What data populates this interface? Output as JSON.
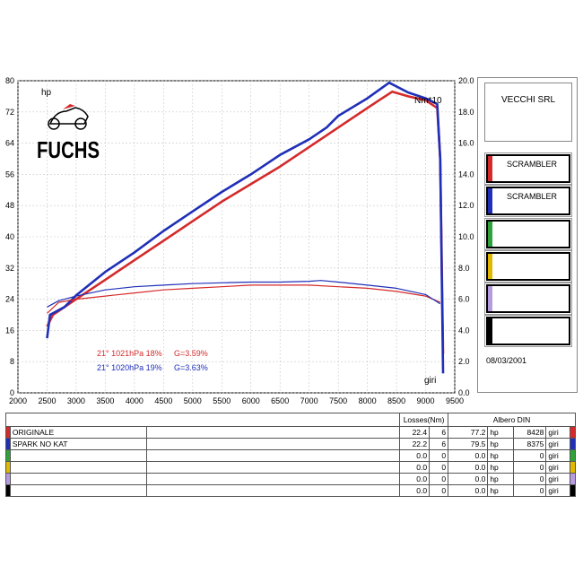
{
  "header": {
    "company": "VECCHI SRL",
    "date": "08/03/2001"
  },
  "logo": {
    "text": "FUCHS"
  },
  "colors": {
    "red": "#d42a2a",
    "blue": "#1f2fb8",
    "green": "#2fa23a",
    "yellow": "#e0b800",
    "violet": "#b79be0",
    "black": "#000000"
  },
  "legend": [
    {
      "label": "SCRAMBLER",
      "color": "#d42a2a"
    },
    {
      "label": "SCRAMBLER",
      "color": "#1f2fb8"
    },
    {
      "label": "",
      "color": "#2fa23a"
    },
    {
      "label": "",
      "color": "#e0b800"
    },
    {
      "label": "",
      "color": "#b79be0"
    },
    {
      "label": "",
      "color": "#000000"
    }
  ],
  "conditions": [
    {
      "text": "21° 1021hPa 18%",
      "g": "G=3.59%",
      "color": "#d42a2a"
    },
    {
      "text": "21° 1020hPa 19%",
      "g": "G=3.63%",
      "color": "#1f2fb8"
    }
  ],
  "table": {
    "losses_header": "Losses(Nm)",
    "albero_header": "Albero DIN",
    "rows": [
      {
        "name": "ORIGINALE",
        "color": "#d42a2a",
        "loss": "22.4",
        "gear": "6",
        "power": "77.2",
        "unit": "hp",
        "rpm": "8428",
        "rpm_unit": "giri"
      },
      {
        "name": "SPARK NO KAT",
        "color": "#1f2fb8",
        "loss": "22.2",
        "gear": "6",
        "power": "79.5",
        "unit": "hp",
        "rpm": "8375",
        "rpm_unit": "giri"
      },
      {
        "name": "",
        "color": "#2fa23a",
        "loss": "0.0",
        "gear": "0",
        "power": "0.0",
        "unit": "hp",
        "rpm": "0",
        "rpm_unit": "giri"
      },
      {
        "name": "",
        "color": "#e0b800",
        "loss": "0.0",
        "gear": "0",
        "power": "0.0",
        "unit": "hp",
        "rpm": "0",
        "rpm_unit": "giri"
      },
      {
        "name": "",
        "color": "#b79be0",
        "loss": "0.0",
        "gear": "0",
        "power": "0.0",
        "unit": "hp",
        "rpm": "0",
        "rpm_unit": "giri"
      },
      {
        "name": "",
        "color": "#000000",
        "loss": "0.0",
        "gear": "0",
        "power": "0.0",
        "unit": "hp",
        "rpm": "0",
        "rpm_unit": "giri"
      }
    ]
  },
  "chart_data": {
    "type": "line",
    "ylabel_left": "hp",
    "ylabel_right": "Nm*10",
    "xlabel": "giri",
    "xlim": [
      2000,
      9500
    ],
    "x_ticks": [
      2000,
      2500,
      3000,
      3500,
      4000,
      4500,
      5000,
      5500,
      6000,
      6500,
      7000,
      7500,
      8000,
      8500,
      9000,
      9500
    ],
    "ylim_left": [
      0,
      80
    ],
    "y_ticks_left": [
      0,
      8,
      16,
      24,
      32,
      40,
      48,
      56,
      64,
      72,
      80
    ],
    "ylim_right": [
      0,
      20
    ],
    "y_ticks_right": [
      "0.0",
      "2.0",
      "4.0",
      "6.0",
      "8.0",
      "10.0",
      "12.0",
      "14.0",
      "16.0",
      "18.0",
      "20.0"
    ],
    "grid": true,
    "series": [
      {
        "name": "ORIGINALE",
        "axis": "left",
        "color": "#d42a2a",
        "points": [
          [
            2500,
            17
          ],
          [
            2600,
            20
          ],
          [
            2800,
            22
          ],
          [
            3000,
            24
          ],
          [
            3500,
            29
          ],
          [
            4000,
            34
          ],
          [
            4500,
            39
          ],
          [
            5000,
            44
          ],
          [
            5500,
            49
          ],
          [
            6000,
            53.5
          ],
          [
            6500,
            58
          ],
          [
            7000,
            63
          ],
          [
            7300,
            66
          ],
          [
            7500,
            68
          ],
          [
            8000,
            73
          ],
          [
            8200,
            75
          ],
          [
            8428,
            77.2
          ],
          [
            8700,
            76
          ],
          [
            9000,
            75
          ],
          [
            9200,
            73
          ],
          [
            9250,
            60
          ],
          [
            9300,
            10
          ]
        ]
      },
      {
        "name": "SPARK NO KAT",
        "axis": "left",
        "color": "#1f2fb8",
        "points": [
          [
            2500,
            14
          ],
          [
            2550,
            20
          ],
          [
            2800,
            22
          ],
          [
            3000,
            25
          ],
          [
            3500,
            31
          ],
          [
            4000,
            36
          ],
          [
            4500,
            41.5
          ],
          [
            5000,
            46.5
          ],
          [
            5500,
            51.5
          ],
          [
            6000,
            56
          ],
          [
            6500,
            61
          ],
          [
            7000,
            65
          ],
          [
            7300,
            68
          ],
          [
            7500,
            71
          ],
          [
            8000,
            75.5
          ],
          [
            8375,
            79.5
          ],
          [
            8700,
            77
          ],
          [
            9000,
            75.5
          ],
          [
            9200,
            74
          ],
          [
            9250,
            60
          ],
          [
            9300,
            5
          ]
        ]
      },
      {
        "name": "ORIGINALE",
        "axis": "right",
        "color": "#d42a2a",
        "points": [
          [
            2500,
            5.1
          ],
          [
            2700,
            5.8
          ],
          [
            3000,
            6.0
          ],
          [
            3500,
            6.2
          ],
          [
            4000,
            6.4
          ],
          [
            4500,
            6.6
          ],
          [
            5000,
            6.7
          ],
          [
            5500,
            6.8
          ],
          [
            6000,
            6.9
          ],
          [
            6500,
            6.9
          ],
          [
            7000,
            6.9
          ],
          [
            7500,
            6.8
          ],
          [
            8000,
            6.7
          ],
          [
            8500,
            6.5
          ],
          [
            9000,
            6.2
          ],
          [
            9250,
            5.8
          ]
        ]
      },
      {
        "name": "SPARK NO KAT",
        "axis": "right",
        "color": "#1f2fb8",
        "points": [
          [
            2500,
            5.5
          ],
          [
            2700,
            5.9
          ],
          [
            3000,
            6.2
          ],
          [
            3500,
            6.6
          ],
          [
            4000,
            6.8
          ],
          [
            4500,
            6.9
          ],
          [
            5000,
            7.0
          ],
          [
            5500,
            7.05
          ],
          [
            6000,
            7.1
          ],
          [
            6500,
            7.1
          ],
          [
            7000,
            7.15
          ],
          [
            7200,
            7.2
          ],
          [
            7500,
            7.1
          ],
          [
            8000,
            6.9
          ],
          [
            8500,
            6.7
          ],
          [
            9000,
            6.3
          ],
          [
            9250,
            5.7
          ]
        ]
      }
    ]
  }
}
